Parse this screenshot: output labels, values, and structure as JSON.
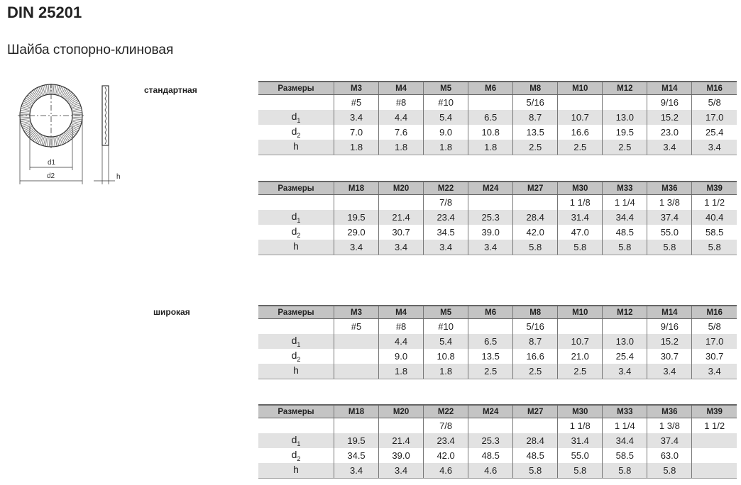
{
  "title": "DIN 25201",
  "subtitle": "Шайба стопорно-клиновая",
  "drawing": {
    "d1_label": "d1",
    "d2_label": "d2",
    "h_label": "h"
  },
  "sections": [
    {
      "label": "стандартная",
      "tables": [
        {
          "header": [
            "Размеры",
            "M3",
            "M4",
            "M5",
            "M6",
            "M8",
            "M10",
            "M12",
            "M14",
            "M16"
          ],
          "inch": [
            "",
            "#5",
            "#8",
            "#10",
            "",
            "5/16",
            "",
            "",
            "9/16",
            "5/8"
          ],
          "rows": [
            {
              "name": "d",
              "sub": "1",
              "values": [
                "3.4",
                "4.4",
                "5.4",
                "6.5",
                "8.7",
                "10.7",
                "13.0",
                "15.2",
                "17.0"
              ]
            },
            {
              "name": "d",
              "sub": "2",
              "values": [
                "7.0",
                "7.6",
                "9.0",
                "10.8",
                "13.5",
                "16.6",
                "19.5",
                "23.0",
                "25.4"
              ]
            },
            {
              "name": "h",
              "sub": "",
              "values": [
                "1.8",
                "1.8",
                "1.8",
                "1.8",
                "2.5",
                "2.5",
                "2.5",
                "3.4",
                "3.4"
              ]
            }
          ]
        },
        {
          "header": [
            "Размеры",
            "M18",
            "M20",
            "M22",
            "M24",
            "M27",
            "M30",
            "M33",
            "M36",
            "M39"
          ],
          "inch": [
            "",
            "",
            "",
            "7/8",
            "",
            "",
            "1 1/8",
            "1 1/4",
            "1 3/8",
            "1 1/2"
          ],
          "rows": [
            {
              "name": "d",
              "sub": "1",
              "values": [
                "19.5",
                "21.4",
                "23.4",
                "25.3",
                "28.4",
                "31.4",
                "34.4",
                "37.4",
                "40.4"
              ]
            },
            {
              "name": "d",
              "sub": "2",
              "values": [
                "29.0",
                "30.7",
                "34.5",
                "39.0",
                "42.0",
                "47.0",
                "48.5",
                "55.0",
                "58.5"
              ]
            },
            {
              "name": "h",
              "sub": "",
              "values": [
                "3.4",
                "3.4",
                "3.4",
                "3.4",
                "5.8",
                "5.8",
                "5.8",
                "5.8",
                "5.8"
              ]
            }
          ]
        }
      ]
    },
    {
      "label": "широкая",
      "tables": [
        {
          "header": [
            "Размеры",
            "M3",
            "M4",
            "M5",
            "M6",
            "M8",
            "M10",
            "M12",
            "M14",
            "M16"
          ],
          "inch": [
            "",
            "#5",
            "#8",
            "#10",
            "",
            "5/16",
            "",
            "",
            "9/16",
            "5/8"
          ],
          "rows": [
            {
              "name": "d",
              "sub": "1",
              "values": [
                "",
                "4.4",
                "5.4",
                "6.5",
                "8.7",
                "10.7",
                "13.0",
                "15.2",
                "17.0"
              ]
            },
            {
              "name": "d",
              "sub": "2",
              "values": [
                "",
                "9.0",
                "10.8",
                "13.5",
                "16.6",
                "21.0",
                "25.4",
                "30.7",
                "30.7"
              ]
            },
            {
              "name": "h",
              "sub": "",
              "values": [
                "",
                "1.8",
                "1.8",
                "2.5",
                "2.5",
                "2.5",
                "3.4",
                "3.4",
                "3.4"
              ]
            }
          ]
        },
        {
          "header": [
            "Размеры",
            "M18",
            "M20",
            "M22",
            "M24",
            "M27",
            "M30",
            "M33",
            "M36",
            "M39"
          ],
          "inch": [
            "",
            "",
            "",
            "7/8",
            "",
            "",
            "1 1/8",
            "1 1/4",
            "1 3/8",
            "1 1/2"
          ],
          "rows": [
            {
              "name": "d",
              "sub": "1",
              "values": [
                "19.5",
                "21.4",
                "23.4",
                "25.3",
                "28.4",
                "31.4",
                "34.4",
                "37.4",
                ""
              ]
            },
            {
              "name": "d",
              "sub": "2",
              "values": [
                "34.5",
                "39.0",
                "42.0",
                "48.5",
                "48.5",
                "55.0",
                "58.5",
                "63.0",
                ""
              ]
            },
            {
              "name": "h",
              "sub": "",
              "values": [
                "3.4",
                "3.4",
                "4.6",
                "4.6",
                "5.8",
                "5.8",
                "5.8",
                "5.8",
                ""
              ]
            }
          ]
        }
      ]
    }
  ]
}
